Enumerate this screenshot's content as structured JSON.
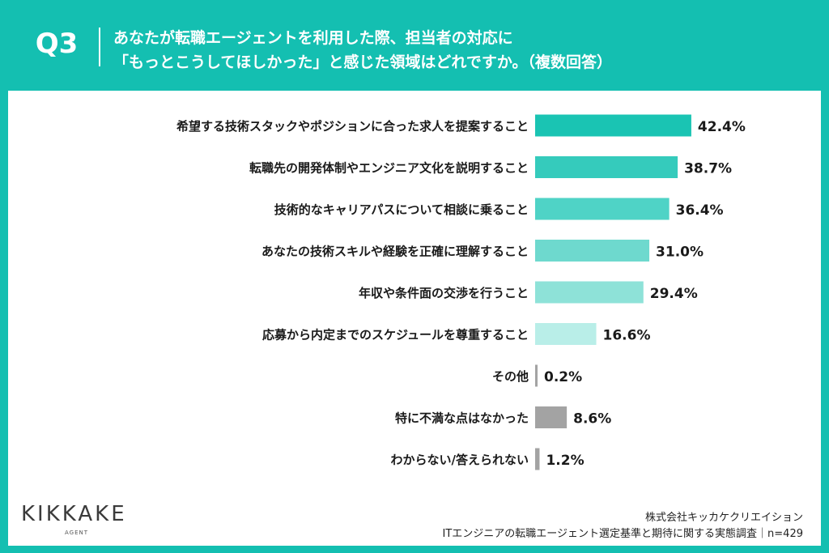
{
  "header": {
    "q_number": "Q3",
    "question_line_1": "あなたが転職エージェントを利用した際、担当者の対応に",
    "question_line_2": "「もっとこうしてほしかった」と感じた領域はどれですか。（複数回答）"
  },
  "colors": {
    "header_background": "#14bfb1",
    "bar_shades": [
      "#1ac4b3",
      "#35cbbc",
      "#4fd3c6",
      "#6ed9ce",
      "#8ee2d8",
      "#b9eee8"
    ],
    "bar_gray": "#a3a3a3"
  },
  "chart_data": {
    "type": "bar",
    "orientation": "horizontal",
    "categories": [
      "希望する技術スタックやポジションに合った求人を提案すること",
      "転職先の開発体制やエンジニア文化を説明すること",
      "技術的なキャリアパスについて相談に乗ること",
      "あなたの技術スキルや経験を正確に理解すること",
      "年収や条件面の交渉を行うこと",
      "応募から内定までのスケジュールを尊重すること",
      "その他",
      "特に不満な点はなかった",
      "わからない/答えられない"
    ],
    "values": [
      42.4,
      38.7,
      36.4,
      31.0,
      29.4,
      16.6,
      0.2,
      8.6,
      1.2
    ],
    "value_labels": [
      "42.4%",
      "38.7%",
      "36.4%",
      "31.0%",
      "29.4%",
      "16.6%",
      "0.2%",
      "8.6%",
      "1.2%"
    ],
    "xlim": [
      0,
      50
    ],
    "grid": false,
    "legend": "none"
  },
  "footer": {
    "logo_text": "KIKKAKE",
    "logo_subtext": "AGENT",
    "company": "株式会社キッカケクリエイション",
    "survey": "ITエンジニアの転職エージェント選定基準と期待に関する実態調査｜n=429"
  }
}
